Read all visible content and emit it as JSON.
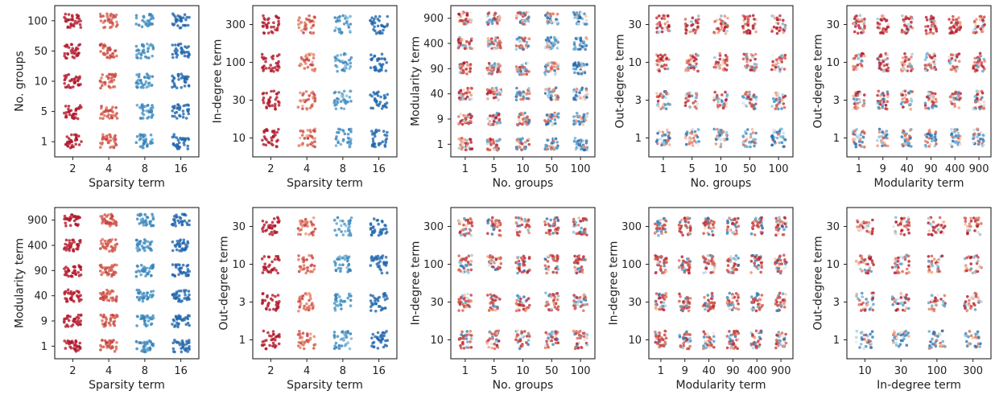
{
  "chart_data": [
    {
      "type": "scatter",
      "xlabel": "Sparsity term",
      "ylabel": "No. groups",
      "xticks": [
        "2",
        "4",
        "8",
        "16"
      ],
      "yticks": [
        "1",
        "5",
        "10",
        "50",
        "100"
      ],
      "color_by": "x",
      "color_strength": 0.9
    },
    {
      "type": "scatter",
      "xlabel": "Sparsity term",
      "ylabel": "In-degree term",
      "xticks": [
        "2",
        "4",
        "8",
        "16"
      ],
      "yticks": [
        "10",
        "30",
        "100",
        "300"
      ],
      "color_by": "x",
      "color_strength": 0.75
    },
    {
      "type": "scatter",
      "xlabel": "No. groups",
      "ylabel": "Modularity term",
      "xticks": [
        "1",
        "5",
        "10",
        "50",
        "100"
      ],
      "yticks": [
        "1",
        "9",
        "40",
        "90",
        "400",
        "900"
      ],
      "color_by": "x",
      "color_strength": 0.25
    },
    {
      "type": "scatter",
      "xlabel": "No. groups",
      "ylabel": "Out-degree term",
      "xticks": [
        "1",
        "5",
        "10",
        "50",
        "100"
      ],
      "yticks": [
        "1",
        "3",
        "10",
        "30"
      ],
      "color_by": "y",
      "color_strength": 0.4
    },
    {
      "type": "scatter",
      "xlabel": "Modularity term",
      "ylabel": "Out-degree term",
      "xticks": [
        "1",
        "9",
        "40",
        "90",
        "400",
        "900"
      ],
      "yticks": [
        "1",
        "3",
        "10",
        "30"
      ],
      "color_by": "y",
      "color_strength": 0.4
    },
    {
      "type": "scatter",
      "xlabel": "Sparsity term",
      "ylabel": "Modularity term",
      "xticks": [
        "2",
        "4",
        "8",
        "16"
      ],
      "yticks": [
        "1",
        "9",
        "40",
        "90",
        "400",
        "900"
      ],
      "color_by": "x",
      "color_strength": 0.9
    },
    {
      "type": "scatter",
      "xlabel": "Sparsity term",
      "ylabel": "Out-degree term",
      "xticks": [
        "2",
        "4",
        "8",
        "16"
      ],
      "yticks": [
        "1",
        "3",
        "10",
        "30"
      ],
      "color_by": "x",
      "color_strength": 0.8
    },
    {
      "type": "scatter",
      "xlabel": "No. groups",
      "ylabel": "In-degree term",
      "xticks": [
        "1",
        "5",
        "10",
        "50",
        "100"
      ],
      "yticks": [
        "10",
        "30",
        "100",
        "300"
      ],
      "color_by": "none",
      "color_strength": 0.15
    },
    {
      "type": "scatter",
      "xlabel": "Modularity term",
      "ylabel": "In-degree term",
      "xticks": [
        "1",
        "9",
        "40",
        "90",
        "400",
        "900"
      ],
      "yticks": [
        "10",
        "30",
        "100",
        "300"
      ],
      "color_by": "none",
      "color_strength": 0.15
    },
    {
      "type": "scatter",
      "xlabel": "In-degree term",
      "ylabel": "Out-degree term",
      "xticks": [
        "10",
        "30",
        "100",
        "300"
      ],
      "yticks": [
        "1",
        "3",
        "10",
        "30"
      ],
      "color_by": "y",
      "color_strength": 0.35
    }
  ],
  "colors": {
    "high": "#b2182b",
    "low": "#2166ac",
    "mid": "#f7f7f7",
    "frame": "#222222"
  },
  "colormap": "RdBu"
}
